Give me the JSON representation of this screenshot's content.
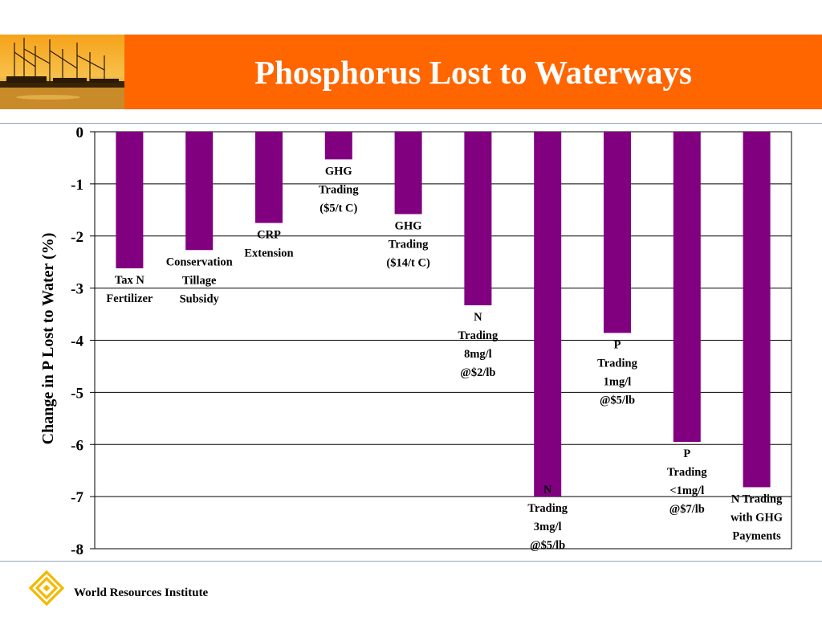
{
  "header": {
    "title": "Phosphorus Lost to Waterways"
  },
  "footer": {
    "org": "World Resources Institute"
  },
  "colors": {
    "header_bg": "#FF6600",
    "bar": "#800080",
    "text": "#000000"
  },
  "chart_data": {
    "type": "bar",
    "title": "",
    "xlabel": "",
    "ylabel": "Change in P Lost to Water (%)",
    "ylim": [
      -8,
      0
    ],
    "yticks": [
      0,
      -1,
      -2,
      -3,
      -4,
      -5,
      -6,
      -7,
      -8
    ],
    "grid": true,
    "categories": [
      [
        "Tax N",
        "Fertilizer"
      ],
      [
        "Conservation",
        "Tillage",
        "Subsidy"
      ],
      [
        "CRP",
        "Extension"
      ],
      [
        "GHG",
        "Trading",
        "($5/t C)"
      ],
      [
        "GHG",
        "Trading",
        "($14/t C)"
      ],
      [
        "N",
        "Trading",
        "8mg/l",
        "@$2/lb"
      ],
      [
        "N",
        "Trading",
        "3mg/l",
        "@$5/lb"
      ],
      [
        "P",
        "Trading",
        "1mg/l",
        "@$5/lb"
      ],
      [
        "P",
        "Trading",
        "<1mg/l",
        "@$7/lb"
      ],
      [
        "N Trading",
        "with GHG",
        "Payments"
      ]
    ],
    "values": [
      -2.62,
      -2.27,
      -1.75,
      -0.53,
      -1.58,
      -3.33,
      -7.0,
      -3.86,
      -5.95,
      -6.82
    ]
  }
}
